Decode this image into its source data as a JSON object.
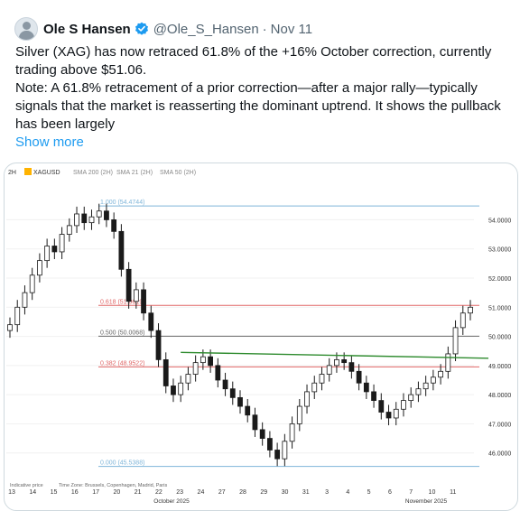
{
  "tweet": {
    "author_name": "Ole S Hansen",
    "handle": "@Ole_S_Hansen",
    "separator": "·",
    "date": "Nov 11",
    "paragraph1": "Silver (XAG) has now retraced 61.8% of the +16% October correction, currently trading above $51.06.",
    "paragraph2": "Note: A 61.8% retracement of a prior correction—after a major rally—typically signals that the market is reasserting the dominant uptrend. It shows the pullback has been largely",
    "show_more": "Show more",
    "icons": {
      "avatar": "avatar-icon",
      "verified": "verified-badge-icon"
    },
    "colors": {
      "link": "#1d9bf0",
      "secondary_text": "#536471",
      "verified": "#1d9bf0"
    }
  },
  "chart_data": {
    "type": "candlestick",
    "header": {
      "timeframe": "2H",
      "symbol": "XAGUSD",
      "indicators": [
        "SMA 200 (2H)",
        "SMA 21 (2H)",
        "SMA 50 (2H)"
      ]
    },
    "fib_levels": [
      {
        "label": "1.000 (54.4744)",
        "value": 54.4744,
        "color": "#7fb5d9"
      },
      {
        "label": "0.618 (51.0619)",
        "value": 51.0619,
        "color": "#e06666"
      },
      {
        "label": "0.500 (50.0068)",
        "value": 50.0068,
        "color": "#666666"
      },
      {
        "label": "0.382 (48.9522)",
        "value": 48.9522,
        "color": "#e06666"
      },
      {
        "label": "0.000 (45.5388)",
        "value": 45.5388,
        "color": "#7fb5d9"
      }
    ],
    "trendline": {
      "color": "#2e8b2e",
      "from": {
        "x": 23,
        "y": 49.45
      },
      "to": {
        "x": 61,
        "y": 49.25
      }
    },
    "y_ticks": [
      "54.0000",
      "53.0000",
      "52.0000",
      "51.0000",
      "50.0000",
      "49.0000",
      "48.0000",
      "47.0000",
      "46.0000"
    ],
    "y_range": [
      45.0,
      55.5
    ],
    "x_ticks": [
      "13",
      "14",
      "15",
      "16",
      "17",
      "20",
      "21",
      "22",
      "23",
      "24",
      "27",
      "28",
      "29",
      "30",
      "31",
      "3",
      "4",
      "5",
      "6",
      "7",
      "10",
      "11"
    ],
    "x_sub_labels": {
      "october": "October 2025",
      "november": "November 2025"
    },
    "footer": {
      "indicative": "Indicative price",
      "timezone": "Time Zone: Brussels, Copenhagen, Madrid, Paris"
    },
    "closes": [
      50.4,
      51.0,
      51.5,
      52.1,
      52.6,
      53.1,
      52.9,
      53.5,
      53.8,
      54.2,
      53.9,
      54.1,
      54.3,
      54.0,
      53.6,
      52.3,
      51.2,
      51.6,
      50.8,
      50.2,
      49.2,
      48.3,
      48.0,
      48.4,
      48.7,
      49.1,
      49.3,
      49.0,
      48.5,
      48.2,
      47.9,
      47.6,
      47.3,
      46.8,
      46.5,
      46.1,
      45.8,
      46.4,
      47.0,
      47.6,
      48.1,
      48.4,
      48.7,
      49.0,
      49.2,
      49.1,
      48.8,
      48.4,
      48.1,
      47.8,
      47.4,
      47.2,
      47.5,
      47.8,
      48.0,
      48.2,
      48.4,
      48.6,
      48.8,
      49.4,
      50.3,
      50.8,
      51.0
    ]
  }
}
